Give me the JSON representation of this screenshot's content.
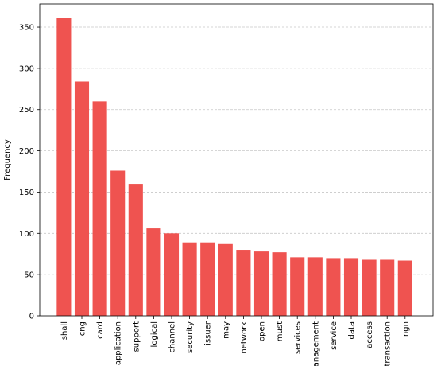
{
  "chart_data": {
    "type": "bar",
    "categories": [
      "shall",
      "cng",
      "card",
      "application",
      "support",
      "logical",
      "channel",
      "security",
      "issuer",
      "may",
      "network",
      "open",
      "must",
      "services",
      "anagement",
      "service",
      "data",
      "access",
      "transaction",
      "ngn"
    ],
    "values": [
      361,
      284,
      260,
      176,
      160,
      106,
      100,
      89,
      89,
      87,
      80,
      78,
      77,
      71,
      71,
      70,
      70,
      68,
      68,
      67
    ],
    "title": "",
    "xlabel": "",
    "ylabel": "Frequency",
    "ylim": [
      0,
      378
    ],
    "yticks": [
      0,
      50,
      100,
      150,
      200,
      250,
      300,
      350
    ],
    "grid": "y-dashed",
    "bar_color": "#ef5350"
  }
}
